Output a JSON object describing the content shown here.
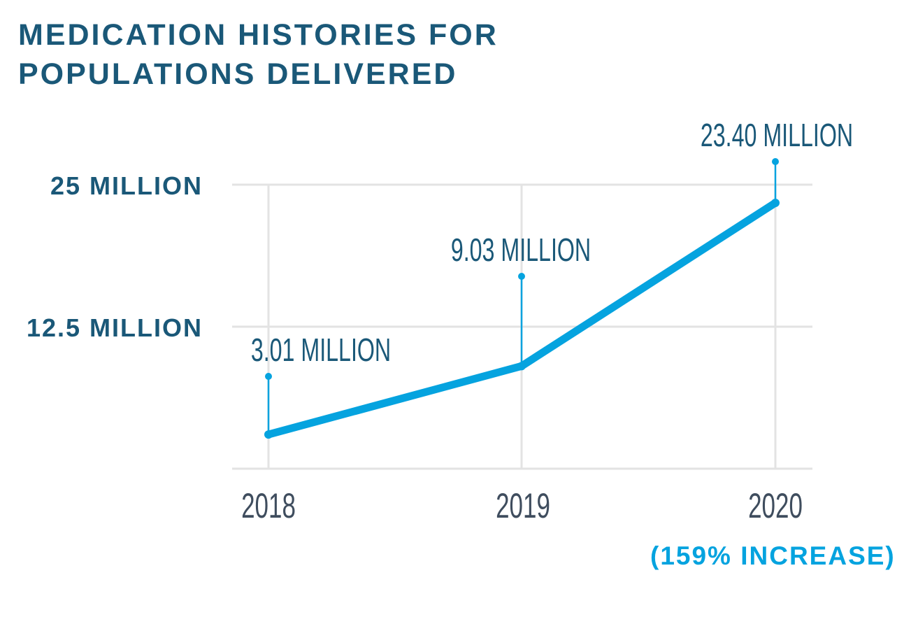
{
  "chart_data": {
    "type": "line",
    "title_lines": [
      "MEDICATION HISTORIES FOR",
      "POPULATIONS DELIVERED"
    ],
    "categories": [
      "2018",
      "2019",
      "2020"
    ],
    "values": [
      3.01,
      9.03,
      23.4
    ],
    "data_labels": [
      "3.01 MILLION",
      "9.03 MILLION",
      "23.40 MILLION"
    ],
    "y_ticks": [
      {
        "value": 12.5,
        "label": "12.5 MILLION"
      },
      {
        "value": 25,
        "label": "25 MILLION"
      }
    ],
    "ylim": [
      0,
      25
    ],
    "unit": "million",
    "grid": true,
    "annotation": "(159% INCREASE)",
    "colors": {
      "title": "#1a5878",
      "line": "#05a3df",
      "year_labels": "#3f4d5e",
      "grid": "#e3e3e3",
      "annotation": "#05a3df"
    }
  }
}
